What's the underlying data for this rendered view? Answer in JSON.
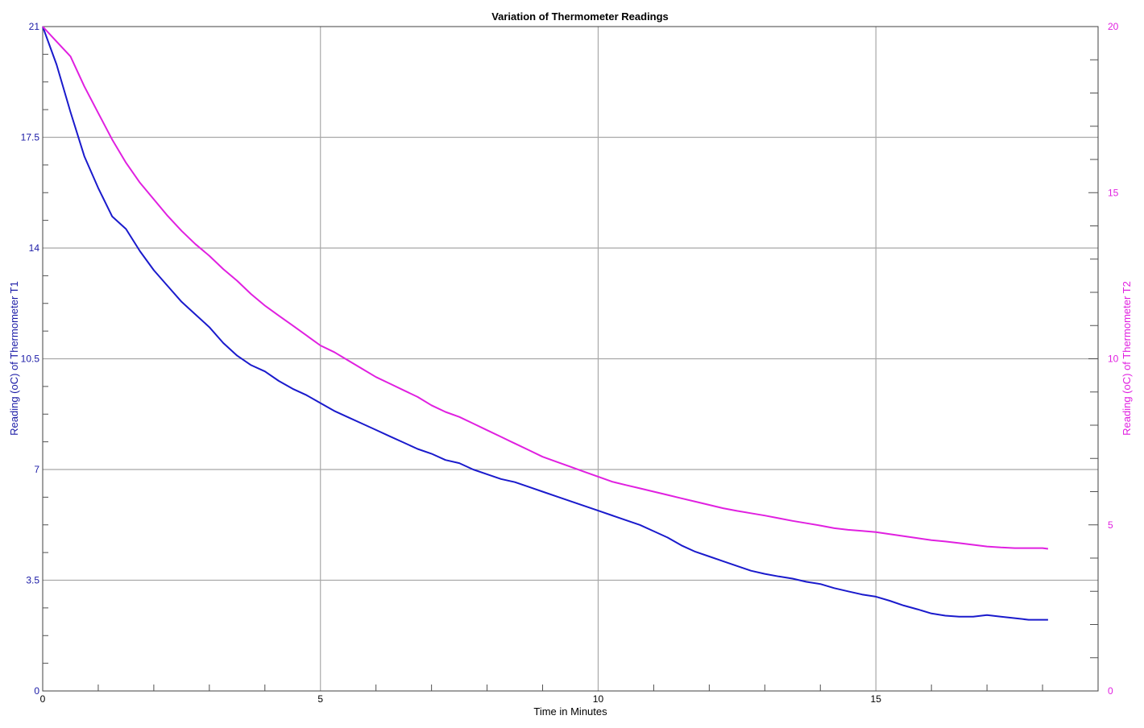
{
  "chart_data": {
    "type": "line",
    "title": "Variation of Thermometer Readings",
    "xlabel": "Time in Minutes",
    "ylabel_left": "Reading (oC) of Thermometer T1",
    "ylabel_right": "Reading (oC) of Thermometer T2",
    "xlim": [
      0,
      19
    ],
    "ylim_left": [
      0,
      21
    ],
    "ylim_right": [
      0,
      20
    ],
    "x_ticks": [
      0,
      5,
      10,
      15
    ],
    "x_tick_labels": [
      "0",
      "5",
      "10",
      "15"
    ],
    "y_left_ticks": [
      0,
      3.5,
      7,
      10.5,
      14,
      17.5,
      21
    ],
    "y_left_tick_labels": [
      "0",
      "3.5",
      "7",
      "10.5",
      "14",
      "17.5",
      "21"
    ],
    "y_right_ticks": [
      0,
      5,
      10,
      15,
      20
    ],
    "y_right_tick_labels": [
      "0",
      "5",
      "10",
      "15",
      "20"
    ],
    "grid": true,
    "colors": {
      "t1": "#1a1acc",
      "t2": "#e020e0",
      "grid": "#a8a8a8",
      "axis": "#404040"
    },
    "series": [
      {
        "axis": "left",
        "x": [
          0,
          0.25,
          0.5,
          0.75,
          1,
          1.25,
          1.5,
          1.75,
          2,
          2.25,
          2.5,
          2.75,
          3,
          3.25,
          3.5,
          3.75,
          4,
          4.25,
          4.5,
          4.75,
          5,
          5.25,
          5.5,
          5.75,
          6,
          6.25,
          6.5,
          6.75,
          7,
          7.25,
          7.5,
          7.75,
          8,
          8.25,
          8.5,
          8.75,
          9,
          9.25,
          9.5,
          9.75,
          10,
          10.25,
          10.5,
          10.75,
          11,
          11.25,
          11.5,
          11.75,
          12,
          12.25,
          12.5,
          12.75,
          13,
          13.25,
          13.5,
          13.75,
          14,
          14.25,
          14.5,
          14.75,
          15,
          15.25,
          15.5,
          15.75,
          16,
          16.25,
          16.5,
          16.75,
          17,
          17.25,
          17.5,
          17.75,
          18,
          18.1
        ],
        "values": [
          21,
          19.8,
          18.3,
          16.9,
          15.9,
          15.0,
          14.6,
          13.9,
          13.3,
          12.8,
          12.3,
          11.9,
          11.5,
          11.0,
          10.6,
          10.3,
          10.1,
          9.8,
          9.55,
          9.35,
          9.1,
          8.85,
          8.65,
          8.45,
          8.25,
          8.05,
          7.85,
          7.65,
          7.5,
          7.3,
          7.2,
          7.0,
          6.85,
          6.7,
          6.6,
          6.45,
          6.3,
          6.15,
          6.0,
          5.85,
          5.7,
          5.55,
          5.4,
          5.25,
          5.05,
          4.85,
          4.6,
          4.4,
          4.25,
          4.1,
          3.95,
          3.8,
          3.7,
          3.62,
          3.55,
          3.45,
          3.38,
          3.25,
          3.15,
          3.05,
          2.98,
          2.85,
          2.7,
          2.58,
          2.45,
          2.38,
          2.35,
          2.35,
          2.4,
          2.35,
          2.3,
          2.25,
          2.25,
          2.25
        ]
      },
      {
        "axis": "right",
        "x": [
          0,
          0.25,
          0.5,
          0.75,
          1,
          1.25,
          1.5,
          1.75,
          2,
          2.25,
          2.5,
          2.75,
          3,
          3.25,
          3.5,
          3.75,
          4,
          4.25,
          4.5,
          4.75,
          5,
          5.25,
          5.5,
          5.75,
          6,
          6.25,
          6.5,
          6.75,
          7,
          7.25,
          7.5,
          7.75,
          8,
          8.25,
          8.5,
          8.75,
          9,
          9.25,
          9.5,
          9.75,
          10,
          10.25,
          10.5,
          10.75,
          11,
          11.25,
          11.5,
          11.75,
          12,
          12.25,
          12.5,
          12.75,
          13,
          13.25,
          13.5,
          13.75,
          14,
          14.25,
          14.5,
          14.75,
          15,
          15.25,
          15.5,
          15.75,
          16,
          16.25,
          16.5,
          16.75,
          17,
          17.25,
          17.5,
          17.75,
          18,
          18.1
        ],
        "values": [
          20,
          19.55,
          19.1,
          18.2,
          17.4,
          16.6,
          15.9,
          15.3,
          14.8,
          14.3,
          13.85,
          13.45,
          13.1,
          12.7,
          12.35,
          11.95,
          11.6,
          11.3,
          11.0,
          10.7,
          10.4,
          10.2,
          9.95,
          9.7,
          9.45,
          9.25,
          9.05,
          8.85,
          8.6,
          8.4,
          8.25,
          8.05,
          7.85,
          7.65,
          7.45,
          7.25,
          7.05,
          6.9,
          6.75,
          6.6,
          6.45,
          6.3,
          6.2,
          6.1,
          6.0,
          5.9,
          5.8,
          5.7,
          5.6,
          5.5,
          5.42,
          5.35,
          5.28,
          5.2,
          5.12,
          5.05,
          4.98,
          4.9,
          4.85,
          4.82,
          4.78,
          4.72,
          4.66,
          4.6,
          4.54,
          4.5,
          4.45,
          4.4,
          4.35,
          4.32,
          4.3,
          4.3,
          4.3,
          4.28
        ]
      }
    ]
  }
}
